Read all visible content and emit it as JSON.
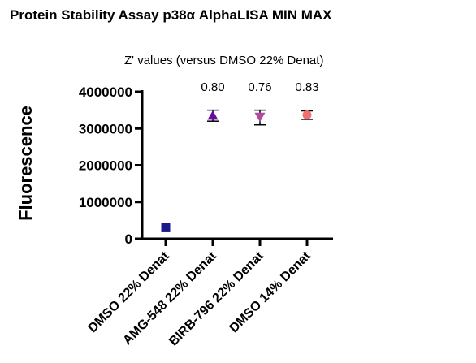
{
  "chart_data": {
    "type": "scatter",
    "title": "Protein Stability Assay p38α AlphaLISA MIN MAX",
    "subtitle": "Z' values (versus DMSO 22% Denat)",
    "ylabel": "Fluorescence",
    "xlabel": "",
    "ylim": [
      0,
      4000000
    ],
    "yticks": [
      0,
      1000000,
      2000000,
      3000000,
      4000000
    ],
    "ytick_labels": [
      "0",
      "1000000",
      "2000000",
      "3000000",
      "4000000"
    ],
    "categories": [
      "DMSO 22% Denat",
      "AMG-548 22% Denat",
      "BIRB-796 22% Denat",
      "DMSO 14% Denat"
    ],
    "points": [
      {
        "category": "DMSO 22% Denat",
        "value": 300000,
        "err_low": 300000,
        "err_high": 300000,
        "marker": "square",
        "color": "#1a1a8c",
        "zlabel": ""
      },
      {
        "category": "AMG-548 22% Denat",
        "value": 3350000,
        "err_low": 3200000,
        "err_high": 3500000,
        "marker": "triangle-up",
        "color": "#6a0aa0",
        "zlabel": "0.80"
      },
      {
        "category": "BIRB-796 22% Denat",
        "value": 3320000,
        "err_low": 3100000,
        "err_high": 3500000,
        "marker": "triangle-down",
        "color": "#b04a9c",
        "zlabel": "0.76"
      },
      {
        "category": "DMSO 14% Denat",
        "value": 3370000,
        "err_low": 3250000,
        "err_high": 3480000,
        "marker": "circle",
        "color": "#f07070",
        "zlabel": "0.83"
      }
    ],
    "grid": false,
    "legend": "none"
  }
}
